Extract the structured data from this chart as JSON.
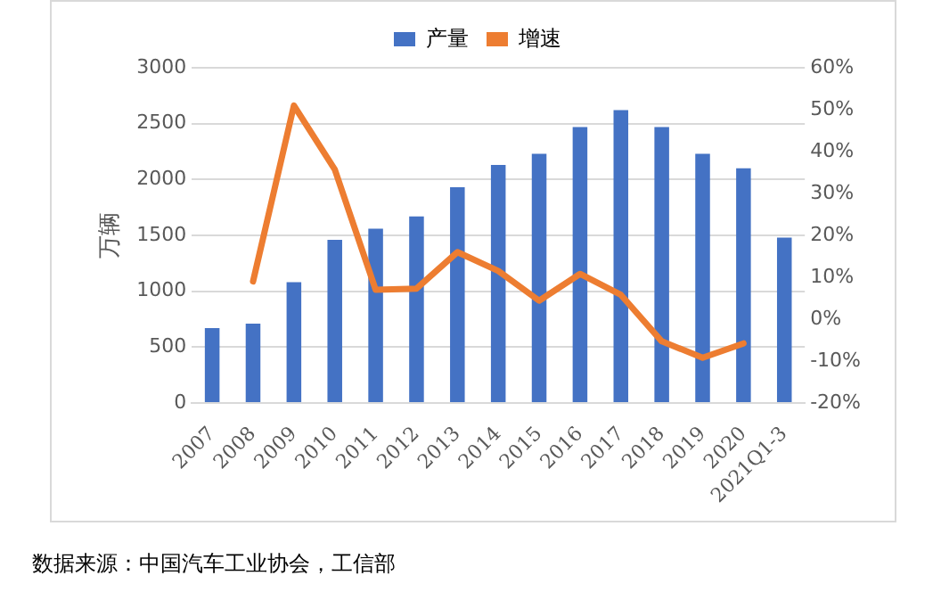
{
  "chart_data": {
    "type": "bar",
    "categories": [
      "2007",
      "2008",
      "2009",
      "2010",
      "2011",
      "2012",
      "2013",
      "2014",
      "2015",
      "2016",
      "2017",
      "2018",
      "2019",
      "2020",
      "2021Q1-3"
    ],
    "series": [
      {
        "name": "产量",
        "color": "#4472c4",
        "values": [
          670,
          710,
          1080,
          1460,
          1560,
          1670,
          1930,
          2130,
          2230,
          2470,
          2620,
          2470,
          2230,
          2100,
          1480
        ]
      },
      {
        "name": "增速",
        "type": "line",
        "axis": "y2",
        "color": "#ed7d31",
        "values": [
          null,
          9,
          51,
          35.7,
          7,
          7.3,
          16,
          11.5,
          4.4,
          10.8,
          5.8,
          -5.3,
          -9.2,
          -5.8,
          null
        ]
      }
    ],
    "ylabel": "万辆",
    "ylim": [
      0,
      3000
    ],
    "yticks": [
      0,
      500,
      1000,
      1500,
      2000,
      2500,
      3000
    ],
    "y2lim": [
      -20,
      60
    ],
    "y2ticks": [
      {
        "value": -20,
        "label": "-20%"
      },
      {
        "value": -10,
        "label": "-10%"
      },
      {
        "value": 0,
        "label": "0%"
      },
      {
        "value": 10,
        "label": "10%"
      },
      {
        "value": 20,
        "label": "20%"
      },
      {
        "value": 30,
        "label": "30%"
      },
      {
        "value": 40,
        "label": "40%"
      },
      {
        "value": 50,
        "label": "50%"
      },
      {
        "value": 60,
        "label": "60%"
      }
    ],
    "grid": "y",
    "legend": "top",
    "marker": "none",
    "line_style": "solid",
    "annotations": [
      "数据来源：中国汽车工业协会，工信部"
    ]
  }
}
